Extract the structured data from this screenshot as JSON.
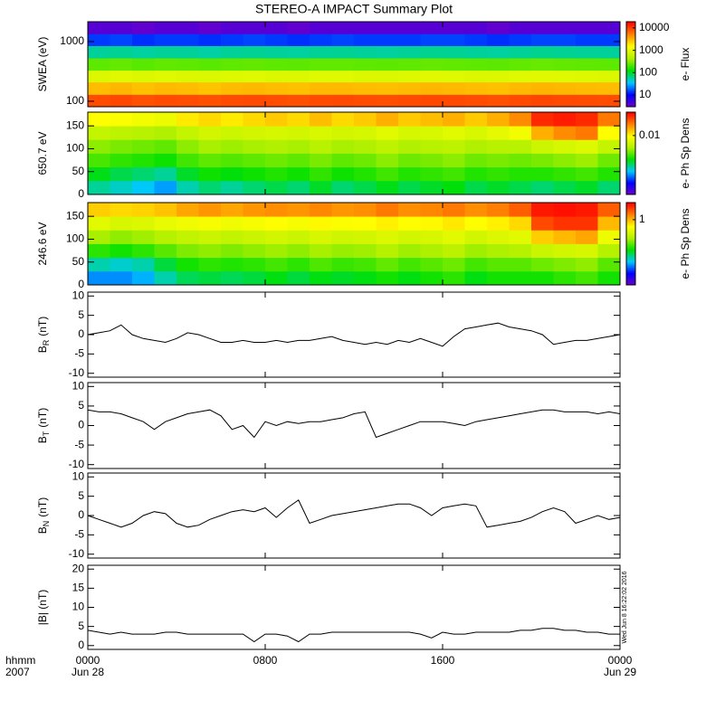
{
  "chart_data": [
    {
      "type": "heatmap",
      "title": "STEREO-A IMPACT Summary Plot",
      "ylabel": "SWEA (eV)",
      "colorbar_label": "e- Flux",
      "ylog": true,
      "ylim": [
        81,
        2150
      ],
      "yticks": [
        100,
        1000
      ],
      "zlog": true,
      "zlim": [
        3,
        19000
      ],
      "zticks": [
        10,
        100,
        1000,
        10000
      ],
      "colormap": [
        "#7000c8",
        "#0000ff",
        "#00c8ff",
        "#00e000",
        "#b0f000",
        "#ffff00",
        "#ff8000",
        "#ff0000"
      ],
      "xbins": [
        0,
        1,
        2,
        3,
        4,
        5,
        6,
        7,
        8,
        9,
        10,
        11,
        12,
        13,
        14,
        15,
        16,
        17,
        18,
        19,
        20,
        21,
        22,
        23,
        24
      ],
      "ybins": [
        81,
        130,
        210,
        330,
        530,
        850,
        1350,
        2150
      ],
      "z": [
        [
          9000,
          9500,
          8800,
          9200,
          9000,
          8700,
          9100,
          9400,
          9000,
          8800,
          9200,
          9300,
          9000,
          8900,
          9100,
          9500,
          9300,
          9000,
          8800,
          9200,
          9600,
          9400,
          9100,
          9000
        ],
        [
          3000,
          3200,
          2900,
          3100,
          3000,
          2800,
          3050,
          3150,
          3000,
          2900,
          3100,
          3100,
          3000,
          2950,
          3050,
          3200,
          3100,
          3000,
          2900,
          3100,
          3250,
          3150,
          3050,
          3000
        ],
        [
          900,
          950,
          880,
          920,
          900,
          870,
          910,
          940,
          900,
          880,
          920,
          930,
          900,
          890,
          910,
          950,
          930,
          900,
          880,
          920,
          960,
          940,
          910,
          900
        ],
        [
          250,
          260,
          240,
          255,
          250,
          240,
          252,
          258,
          250,
          245,
          255,
          256,
          250,
          248,
          252,
          262,
          256,
          250,
          245,
          255,
          265,
          258,
          252,
          250
        ],
        [
          60,
          62,
          58,
          61,
          60,
          57,
          61,
          62,
          60,
          59,
          61,
          62,
          60,
          59,
          61,
          63,
          62,
          60,
          59,
          61,
          64,
          62,
          61,
          60
        ],
        [
          15,
          16,
          14,
          15,
          15,
          14,
          15,
          16,
          15,
          14,
          15,
          16,
          15,
          15,
          15,
          16,
          16,
          15,
          14,
          15,
          16,
          16,
          15,
          15
        ],
        [
          4,
          4,
          3.5,
          4,
          4,
          3.5,
          4,
          4,
          4,
          3.5,
          4,
          4,
          4,
          4,
          4,
          4,
          4,
          4,
          3.5,
          4,
          4,
          4,
          4,
          4
        ]
      ]
    },
    {
      "type": "heatmap",
      "ylabel": "650.7 eV",
      "colorbar_label": "e- Ph Sp Dens",
      "ylim": [
        0,
        180
      ],
      "yticks": [
        0,
        50,
        100,
        150
      ],
      "zlog": true,
      "zlim": [
        0.00037,
        0.037
      ],
      "zticks": [
        0.01
      ],
      "colormap": [
        "#7000c8",
        "#0000ff",
        "#00c8ff",
        "#00e000",
        "#b0f000",
        "#ffff00",
        "#ff8000",
        "#ff0000"
      ],
      "xbins": [
        0,
        1,
        2,
        3,
        4,
        5,
        6,
        7,
        8,
        9,
        10,
        11,
        12,
        13,
        14,
        15,
        16,
        17,
        18,
        19,
        20,
        21,
        22,
        23,
        24
      ],
      "ybins": [
        0,
        30,
        60,
        90,
        120,
        150,
        180
      ],
      "z": [
        [
          0.0018,
          0.0016,
          0.0014,
          0.0012,
          0.0017,
          0.002,
          0.0018,
          0.002,
          0.0022,
          0.002,
          0.0024,
          0.002,
          0.0022,
          0.0025,
          0.0022,
          0.0024,
          0.0026,
          0.0022,
          0.0024,
          0.0022,
          0.002,
          0.0022,
          0.0024,
          0.002
        ],
        [
          0.0025,
          0.0022,
          0.002,
          0.0018,
          0.0024,
          0.0028,
          0.0026,
          0.0028,
          0.003,
          0.0028,
          0.0032,
          0.0028,
          0.003,
          0.0034,
          0.003,
          0.0032,
          0.0034,
          0.003,
          0.0032,
          0.003,
          0.003,
          0.0032,
          0.0034,
          0.003
        ],
        [
          0.0035,
          0.0032,
          0.003,
          0.0028,
          0.0034,
          0.0038,
          0.0036,
          0.0038,
          0.004,
          0.0038,
          0.0042,
          0.0038,
          0.004,
          0.0045,
          0.004,
          0.0042,
          0.0045,
          0.004,
          0.0042,
          0.004,
          0.0042,
          0.0045,
          0.0048,
          0.004
        ],
        [
          0.0045,
          0.0042,
          0.004,
          0.0038,
          0.0045,
          0.005,
          0.0048,
          0.005,
          0.0052,
          0.005,
          0.0055,
          0.005,
          0.0052,
          0.0058,
          0.0052,
          0.0055,
          0.0058,
          0.0052,
          0.0055,
          0.0055,
          0.0065,
          0.007,
          0.0075,
          0.006
        ],
        [
          0.006,
          0.0058,
          0.0055,
          0.0052,
          0.006,
          0.0068,
          0.0065,
          0.0068,
          0.007,
          0.0068,
          0.0072,
          0.0068,
          0.007,
          0.0078,
          0.007,
          0.0072,
          0.0078,
          0.0072,
          0.008,
          0.009,
          0.015,
          0.018,
          0.02,
          0.01
        ],
        [
          0.01,
          0.0095,
          0.009,
          0.0085,
          0.011,
          0.012,
          0.011,
          0.012,
          0.013,
          0.012,
          0.014,
          0.012,
          0.013,
          0.015,
          0.013,
          0.014,
          0.015,
          0.013,
          0.015,
          0.018,
          0.03,
          0.032,
          0.03,
          0.02
        ]
      ]
    },
    {
      "type": "heatmap",
      "ylabel": "246.6 eV",
      "colorbar_label": "e- Ph Sp Dens",
      "ylim": [
        0,
        180
      ],
      "yticks": [
        0,
        50,
        100,
        150
      ],
      "zlog": true,
      "zlim": [
        0.026,
        2.6
      ],
      "zticks": [
        1
      ],
      "colormap": [
        "#7000c8",
        "#0000ff",
        "#00c8ff",
        "#00e000",
        "#b0f000",
        "#ffff00",
        "#ff8000",
        "#ff0000"
      ],
      "xbins": [
        0,
        1,
        2,
        3,
        4,
        5,
        6,
        7,
        8,
        9,
        10,
        11,
        12,
        13,
        14,
        15,
        16,
        17,
        18,
        19,
        20,
        21,
        22,
        23,
        24
      ],
      "ybins": [
        0,
        30,
        60,
        90,
        120,
        150,
        180
      ],
      "z": [
        [
          0.08,
          0.08,
          0.09,
          0.12,
          0.15,
          0.16,
          0.15,
          0.16,
          0.18,
          0.16,
          0.18,
          0.17,
          0.18,
          0.2,
          0.18,
          0.2,
          0.22,
          0.18,
          0.2,
          0.2,
          0.2,
          0.22,
          0.24,
          0.2
        ],
        [
          0.12,
          0.11,
          0.12,
          0.16,
          0.2,
          0.22,
          0.21,
          0.22,
          0.24,
          0.22,
          0.25,
          0.23,
          0.24,
          0.27,
          0.24,
          0.26,
          0.28,
          0.24,
          0.26,
          0.26,
          0.28,
          0.3,
          0.32,
          0.26
        ],
        [
          0.22,
          0.2,
          0.22,
          0.26,
          0.3,
          0.32,
          0.3,
          0.32,
          0.34,
          0.32,
          0.35,
          0.33,
          0.34,
          0.38,
          0.34,
          0.36,
          0.4,
          0.34,
          0.36,
          0.38,
          0.45,
          0.48,
          0.5,
          0.38
        ],
        [
          0.35,
          0.32,
          0.34,
          0.38,
          0.42,
          0.45,
          0.42,
          0.45,
          0.48,
          0.45,
          0.5,
          0.46,
          0.48,
          0.52,
          0.48,
          0.5,
          0.55,
          0.48,
          0.52,
          0.55,
          0.9,
          1.0,
          1.1,
          0.6
        ],
        [
          0.55,
          0.5,
          0.52,
          0.58,
          0.62,
          0.65,
          0.62,
          0.65,
          0.7,
          0.65,
          0.72,
          0.68,
          0.7,
          0.75,
          0.7,
          0.72,
          0.78,
          0.7,
          0.75,
          0.85,
          1.8,
          2.0,
          2.0,
          1.0
        ],
        [
          0.9,
          0.85,
          0.88,
          0.95,
          1.1,
          1.2,
          1.1,
          1.2,
          1.25,
          1.2,
          1.3,
          1.2,
          1.25,
          1.4,
          1.25,
          1.3,
          1.4,
          1.25,
          1.35,
          1.6,
          2.3,
          2.4,
          2.3,
          1.6
        ]
      ]
    },
    {
      "type": "line",
      "ylabel": "B",
      "ylabel_sub": "R",
      "ylabel_unit": "(nT)",
      "color": "#000000",
      "ylim": [
        -11,
        11
      ],
      "yticks": [
        -10,
        -5,
        0,
        5,
        10
      ],
      "x": [
        0,
        0.5,
        1,
        1.5,
        2,
        2.5,
        3,
        3.5,
        4,
        4.5,
        5,
        5.5,
        6,
        6.5,
        7,
        7.5,
        8,
        8.5,
        9,
        9.5,
        10,
        10.5,
        11,
        11.5,
        12,
        12.5,
        13,
        13.5,
        14,
        14.5,
        15,
        15.5,
        16,
        16.5,
        17,
        17.5,
        18,
        18.5,
        19,
        19.5,
        20,
        20.5,
        21,
        21.5,
        22,
        22.5,
        23,
        23.5,
        24
      ],
      "values": [
        0,
        0.5,
        1,
        2.5,
        0,
        -1,
        -1.5,
        -2,
        -1,
        0.5,
        0,
        -1,
        -2,
        -2,
        -1.5,
        -2,
        -2,
        -1.5,
        -2,
        -1.5,
        -1.5,
        -1,
        -0.5,
        -1.5,
        -2,
        -2.5,
        -2,
        -2.5,
        -1.5,
        -2,
        -1,
        -2,
        -3,
        -0.5,
        1.5,
        2,
        2.5,
        3,
        2,
        1.5,
        1,
        0,
        -2.5,
        -2,
        -1.5,
        -1.5,
        -1,
        -0.5,
        0
      ]
    },
    {
      "type": "line",
      "ylabel": "B",
      "ylabel_sub": "T",
      "ylabel_unit": "(nT)",
      "color": "#000000",
      "ylim": [
        -11,
        11
      ],
      "yticks": [
        -10,
        -5,
        0,
        5,
        10
      ],
      "x": [
        0,
        0.5,
        1,
        1.5,
        2,
        2.5,
        3,
        3.5,
        4,
        4.5,
        5,
        5.5,
        6,
        6.5,
        7,
        7.5,
        8,
        8.5,
        9,
        9.5,
        10,
        10.5,
        11,
        11.5,
        12,
        12.5,
        13,
        13.5,
        14,
        14.5,
        15,
        15.5,
        16,
        16.5,
        17,
        17.5,
        18,
        18.5,
        19,
        19.5,
        20,
        20.5,
        21,
        21.5,
        22,
        22.5,
        23,
        23.5,
        24
      ],
      "values": [
        4,
        3.5,
        3.5,
        3,
        2,
        1,
        -1,
        1,
        2,
        3,
        3.5,
        4,
        2.5,
        -1,
        0,
        -3,
        1,
        0,
        1,
        0.5,
        1,
        1,
        1.5,
        2,
        3,
        3.5,
        -3,
        -2,
        -1,
        0,
        1,
        1,
        1,
        0.5,
        0,
        1,
        1.5,
        2,
        2.5,
        3,
        3.5,
        4,
        4,
        3.5,
        3.5,
        3.5,
        3,
        3.5,
        3
      ]
    },
    {
      "type": "line",
      "ylabel": "B",
      "ylabel_sub": "N",
      "ylabel_unit": "(nT)",
      "color": "#000000",
      "ylim": [
        -11,
        11
      ],
      "yticks": [
        -10,
        -5,
        0,
        5,
        10
      ],
      "x": [
        0,
        0.5,
        1,
        1.5,
        2,
        2.5,
        3,
        3.5,
        4,
        4.5,
        5,
        5.5,
        6,
        6.5,
        7,
        7.5,
        8,
        8.5,
        9,
        9.5,
        10,
        10.5,
        11,
        11.5,
        12,
        12.5,
        13,
        13.5,
        14,
        14.5,
        15,
        15.5,
        16,
        16.5,
        17,
        17.5,
        18,
        18.5,
        19,
        19.5,
        20,
        20.5,
        21,
        21.5,
        22,
        22.5,
        23,
        23.5,
        24
      ],
      "values": [
        0,
        -1,
        -2,
        -3,
        -2,
        0,
        1,
        0.5,
        -2,
        -3,
        -2.5,
        -1,
        0,
        1,
        1.5,
        1,
        2,
        -0.5,
        2,
        4,
        -2,
        -1,
        0,
        0.5,
        1,
        1.5,
        2,
        2.5,
        3,
        3,
        2,
        0,
        2,
        2.5,
        3,
        2.5,
        -3,
        -2.5,
        -2,
        -1.5,
        -0.5,
        1,
        2,
        1,
        -2,
        -1,
        0,
        -1,
        -0.5
      ]
    },
    {
      "type": "line",
      "ylabel": "|B| (nT)",
      "color": "#000000",
      "ylim": [
        -1,
        21
      ],
      "yticks": [
        0,
        5,
        10,
        15,
        20
      ],
      "x": [
        0,
        0.5,
        1,
        1.5,
        2,
        2.5,
        3,
        3.5,
        4,
        4.5,
        5,
        5.5,
        6,
        6.5,
        7,
        7.5,
        8,
        8.5,
        9,
        9.5,
        10,
        10.5,
        11,
        11.5,
        12,
        12.5,
        13,
        13.5,
        14,
        14.5,
        15,
        15.5,
        16,
        16.5,
        17,
        17.5,
        18,
        18.5,
        19,
        19.5,
        20,
        20.5,
        21,
        21.5,
        22,
        22.5,
        23,
        23.5,
        24
      ],
      "values": [
        4,
        3.5,
        3,
        3.5,
        3,
        3,
        3,
        3.5,
        3.5,
        3,
        3,
        3,
        3,
        3,
        3,
        1,
        3,
        3,
        2.5,
        1,
        3,
        3,
        3.5,
        3.5,
        3.5,
        3.5,
        3.5,
        3.5,
        3.5,
        3.5,
        3,
        2,
        3.5,
        3,
        3,
        3.5,
        3.5,
        3.5,
        3.5,
        4,
        4,
        4.5,
        4.5,
        4,
        4,
        3.5,
        3.5,
        3,
        3
      ],
      "xlim": [
        0,
        24
      ],
      "xticks": [
        {
          "value": 0,
          "label": "0000"
        },
        {
          "value": 8,
          "label": "0800"
        },
        {
          "value": 16,
          "label": "1600"
        },
        {
          "value": 24,
          "label": "0000"
        }
      ],
      "xdates": [
        {
          "value": 0,
          "label": "Jun 28"
        },
        {
          "value": 24,
          "label": "Jun 29"
        }
      ],
      "xaxis_format": "hhmm",
      "year": "2007",
      "stamp": "Wed Jun  8 16:22:02 2016"
    }
  ]
}
